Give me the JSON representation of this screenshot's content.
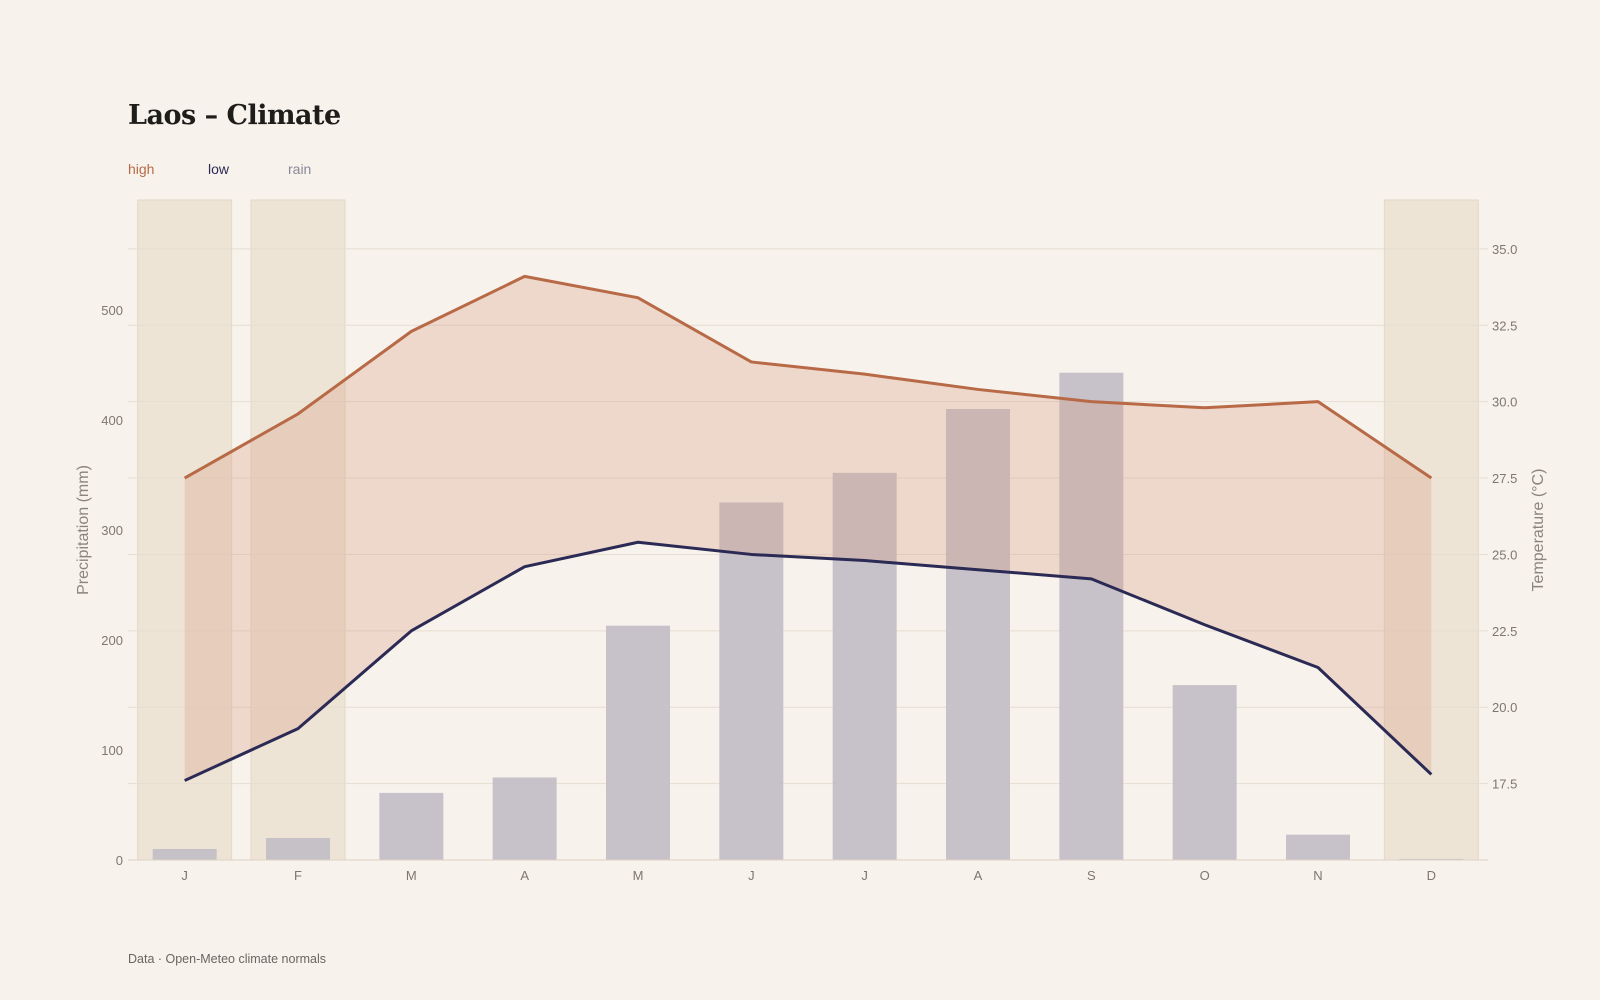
{
  "chart_data": {
    "type": "bar",
    "title": "Laos – Climate",
    "categories": [
      "J",
      "F",
      "M",
      "A",
      "M",
      "J",
      "J",
      "A",
      "S",
      "O",
      "N",
      "D"
    ],
    "series": [
      {
        "name": "high",
        "type": "line",
        "axis": "right",
        "color": "#b86a47",
        "values": [
          27.5,
          29.6,
          32.3,
          34.1,
          33.4,
          31.3,
          30.9,
          30.4,
          30.0,
          29.8,
          30.0,
          27.5
        ]
      },
      {
        "name": "low",
        "type": "line",
        "axis": "right",
        "color": "#2b2a55",
        "values": [
          17.6,
          19.3,
          22.5,
          24.6,
          25.4,
          25.0,
          24.8,
          24.5,
          24.2,
          22.7,
          21.3,
          17.8
        ]
      },
      {
        "name": "rain",
        "type": "bar",
        "axis": "left",
        "color": "#c2bec6",
        "values": [
          10,
          20,
          61,
          75,
          213,
          325,
          352,
          410,
          443,
          159,
          23,
          1
        ]
      }
    ],
    "dry_months": [
      "J",
      "F",
      "D"
    ],
    "ylabel": "Precipitation (mm)",
    "y2label": "Temperature (°C)",
    "ylim": [
      0,
      600
    ],
    "yticks": [
      "0",
      "100",
      "200",
      "300",
      "400",
      "500"
    ],
    "y2lim": [
      15.0,
      36.6
    ],
    "y2ticks": [
      "17.5",
      "20.0",
      "22.5",
      "25.0",
      "27.5",
      "30.0",
      "32.5",
      "35.0"
    ],
    "legend_position": "top-left"
  },
  "footer": "Data · Open-Meteo climate normals"
}
